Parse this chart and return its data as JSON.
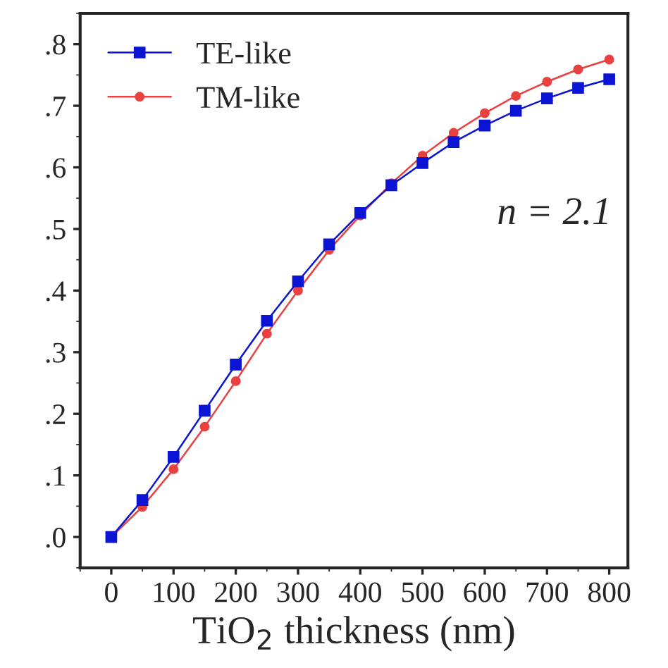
{
  "chart_data": {
    "type": "line",
    "xlabel": "TiO$_{2}$ thickness (nm)",
    "x": [
      0,
      50,
      100,
      150,
      200,
      250,
      300,
      350,
      400,
      450,
      500,
      550,
      600,
      650,
      700,
      750,
      800
    ],
    "series": [
      {
        "name": "TE-like",
        "color": "#0a14d2",
        "marker": "square",
        "values": [
          0,
          0.06,
          0.13,
          0.205,
          0.28,
          0.351,
          0.415,
          0.475,
          0.526,
          0.571,
          0.607,
          0.641,
          0.668,
          0.692,
          0.712,
          0.729,
          0.743
        ]
      },
      {
        "name": "TM-like",
        "color": "#e8413f",
        "marker": "circle",
        "values": [
          0,
          0.049,
          0.11,
          0.179,
          0.253,
          0.33,
          0.4,
          0.466,
          0.522,
          0.574,
          0.619,
          0.656,
          0.688,
          0.716,
          0.739,
          0.759,
          0.775
        ]
      }
    ],
    "xlim": [
      -50,
      830
    ],
    "ylim": [
      -0.05,
      0.85
    ],
    "xticks": [
      0,
      100,
      200,
      300,
      400,
      500,
      600,
      700,
      800
    ],
    "yticks": [
      {
        "value": 0,
        "label": ".0"
      },
      {
        "value": 0.1,
        "label": ".1"
      },
      {
        "value": 0.2,
        "label": ".2"
      },
      {
        "value": 0.3,
        "label": ".3"
      },
      {
        "value": 0.4,
        "label": ".4"
      },
      {
        "value": 0.5,
        "label": ".5"
      },
      {
        "value": 0.6,
        "label": ".6"
      },
      {
        "value": 0.7,
        "label": ".7"
      },
      {
        "value": 0.8,
        "label": ".8"
      }
    ],
    "annotations": [
      "n = 2.1"
    ],
    "legend": "top left",
    "grid": false,
    "line_style": "solid"
  }
}
